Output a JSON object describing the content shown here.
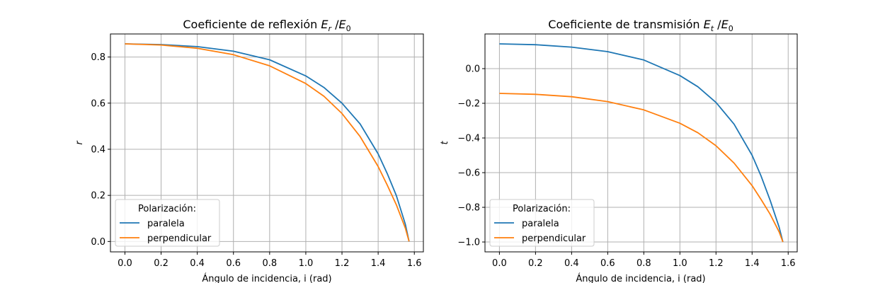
{
  "chart_data": [
    {
      "type": "line",
      "title": "Coeficiente de reflexión E_r /E_0",
      "title_parts": {
        "prefix": "Coeficiente de reflexión ",
        "E": "E",
        "sub1": "r",
        "sep": " /",
        "E2": "E",
        "sub2": "0"
      },
      "xlabel": "Ángulo de incidencia, i (rad)",
      "ylabel": "r",
      "xlim": [
        -0.08,
        1.65
      ],
      "ylim": [
        -0.045,
        0.9
      ],
      "xticks": [
        0.0,
        0.2,
        0.4,
        0.6,
        0.8,
        1.0,
        1.2,
        1.4,
        1.6
      ],
      "xtick_labels": [
        "0.0",
        "0.2",
        "0.4",
        "0.6",
        "0.8",
        "1.0",
        "1.2",
        "1.4",
        "1.6"
      ],
      "yticks": [
        0.0,
        0.2,
        0.4,
        0.6,
        0.8
      ],
      "ytick_labels": [
        "0.0",
        "0.2",
        "0.4",
        "0.6",
        "0.8"
      ],
      "grid": true,
      "legend": {
        "title": "Polarización:",
        "placement": "lower-left"
      },
      "series": [
        {
          "name": "paralela",
          "color": "#1f77b4",
          "x": [
            0.0,
            0.2,
            0.4,
            0.6,
            0.8,
            1.0,
            1.1,
            1.2,
            1.3,
            1.4,
            1.45,
            1.5,
            1.55,
            1.5708
          ],
          "y": [
            0.857,
            0.854,
            0.845,
            0.825,
            0.788,
            0.718,
            0.668,
            0.6,
            0.51,
            0.38,
            0.295,
            0.2,
            0.075,
            0.0
          ]
        },
        {
          "name": "perpendicular",
          "color": "#ff7f0e",
          "x": [
            0.0,
            0.2,
            0.4,
            0.6,
            0.8,
            1.0,
            1.1,
            1.2,
            1.3,
            1.4,
            1.45,
            1.5,
            1.55,
            1.5708
          ],
          "y": [
            0.857,
            0.852,
            0.838,
            0.81,
            0.762,
            0.685,
            0.63,
            0.555,
            0.455,
            0.325,
            0.245,
            0.16,
            0.058,
            0.0
          ]
        }
      ]
    },
    {
      "type": "line",
      "title": "Coeficiente de transmisión E_t /E_0",
      "title_parts": {
        "prefix": "Coeficiente de transmisión ",
        "E": "E",
        "sub1": "t",
        "sep": " /",
        "E2": "E",
        "sub2": "0"
      },
      "xlabel": "Ángulo de incidencia, i (rad)",
      "ylabel": "t",
      "xlim": [
        -0.08,
        1.65
      ],
      "ylim": [
        -1.057,
        0.2
      ],
      "xticks": [
        0.0,
        0.2,
        0.4,
        0.6,
        0.8,
        1.0,
        1.2,
        1.4,
        1.6
      ],
      "xtick_labels": [
        "0.0",
        "0.2",
        "0.4",
        "0.6",
        "0.8",
        "1.0",
        "1.2",
        "1.4",
        "1.6"
      ],
      "yticks": [
        0.0,
        -0.2,
        -0.4,
        -0.6,
        -0.8,
        -1.0
      ],
      "ytick_labels": [
        "0.0",
        "−0.2",
        "−0.4",
        "−0.6",
        "−0.8",
        "−1.0"
      ],
      "grid": true,
      "legend": {
        "title": "Polarización:",
        "placement": "lower-left"
      },
      "series": [
        {
          "name": "paralela",
          "color": "#1f77b4",
          "x": [
            0.0,
            0.2,
            0.4,
            0.6,
            0.8,
            1.0,
            1.1,
            1.2,
            1.3,
            1.4,
            1.45,
            1.5,
            1.55,
            1.5708
          ],
          "y": [
            0.143,
            0.138,
            0.124,
            0.098,
            0.05,
            -0.04,
            -0.105,
            -0.195,
            -0.32,
            -0.5,
            -0.62,
            -0.76,
            -0.915,
            -1.0
          ]
        },
        {
          "name": "perpendicular",
          "color": "#ff7f0e",
          "x": [
            0.0,
            0.2,
            0.4,
            0.6,
            0.8,
            1.0,
            1.1,
            1.2,
            1.3,
            1.4,
            1.45,
            1.5,
            1.55,
            1.5708
          ],
          "y": [
            -0.143,
            -0.148,
            -0.162,
            -0.19,
            -0.238,
            -0.315,
            -0.37,
            -0.445,
            -0.545,
            -0.675,
            -0.755,
            -0.84,
            -0.942,
            -1.0
          ]
        }
      ]
    }
  ]
}
